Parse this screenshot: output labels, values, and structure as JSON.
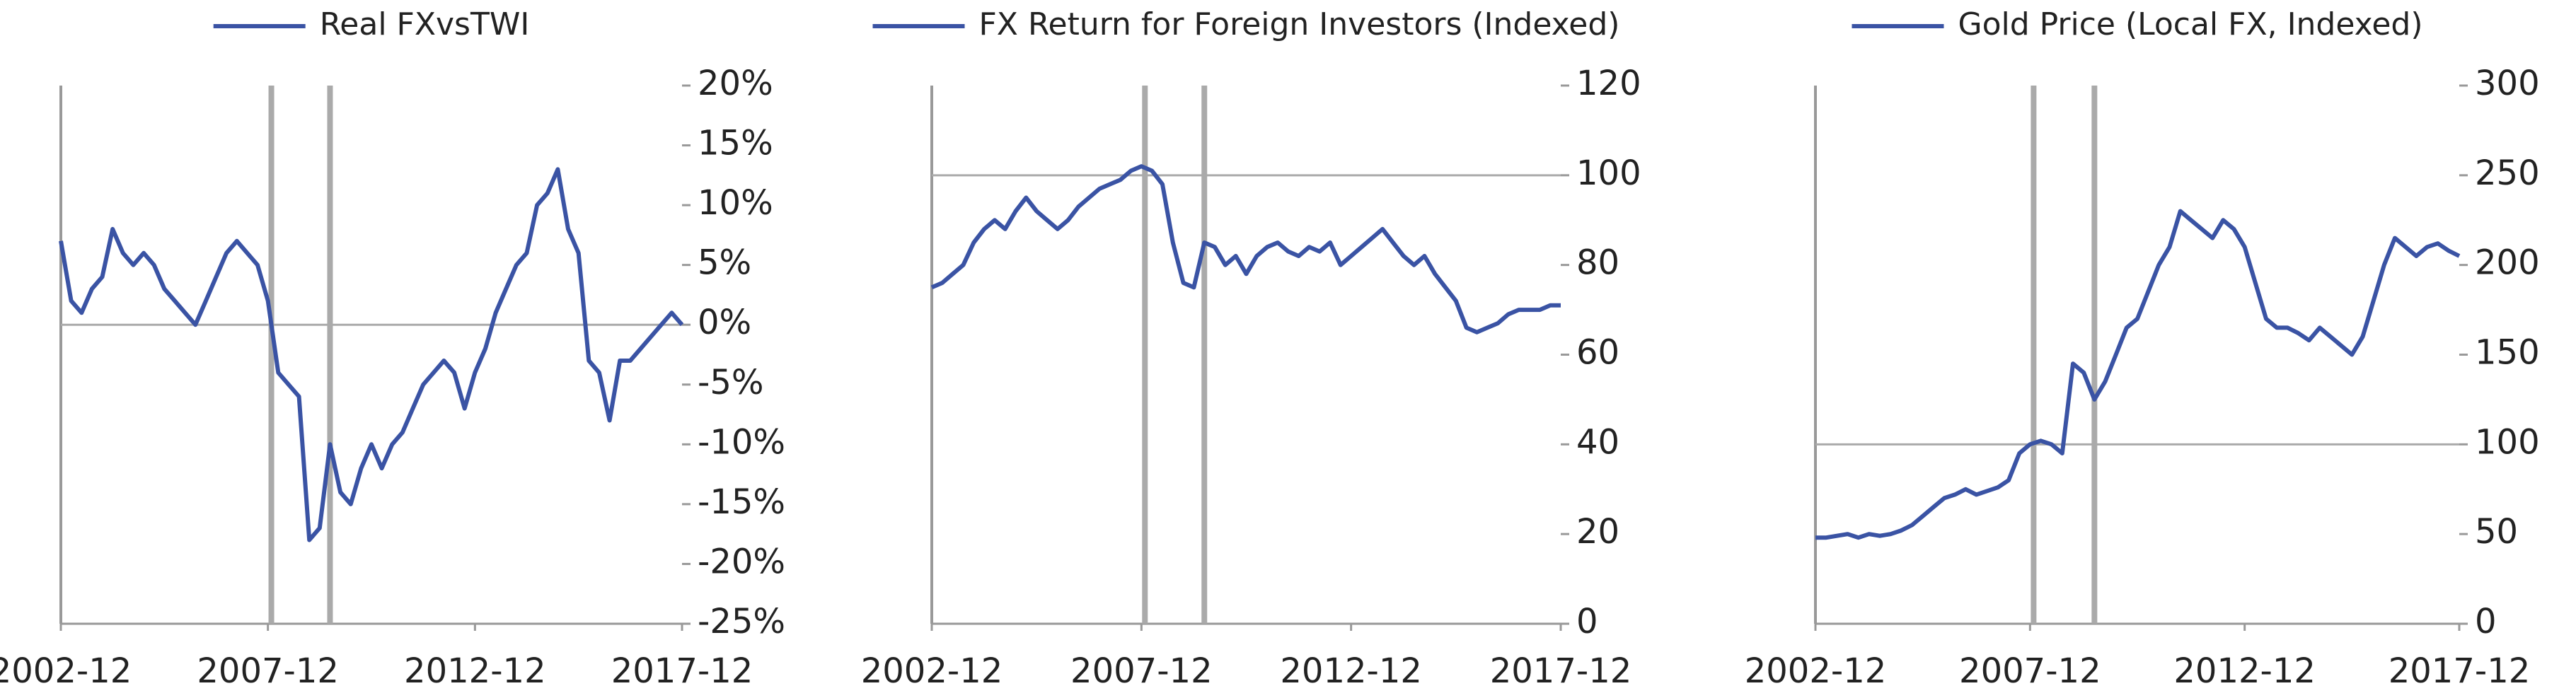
{
  "chart_data": [
    {
      "type": "line",
      "x": [
        "2002-12",
        "2003-03",
        "2003-06",
        "2003-09",
        "2003-12",
        "2004-03",
        "2004-06",
        "2004-09",
        "2004-12",
        "2005-03",
        "2005-06",
        "2005-09",
        "2005-12",
        "2006-03",
        "2006-06",
        "2006-09",
        "2006-12",
        "2007-03",
        "2007-06",
        "2007-09",
        "2007-12",
        "2008-03",
        "2008-06",
        "2008-09",
        "2008-12",
        "2009-03",
        "2009-06",
        "2009-09",
        "2009-12",
        "2010-03",
        "2010-06",
        "2010-09",
        "2010-12",
        "2011-03",
        "2011-06",
        "2011-09",
        "2011-12",
        "2012-03",
        "2012-06",
        "2012-09",
        "2012-12",
        "2013-03",
        "2013-06",
        "2013-09",
        "2013-12",
        "2014-03",
        "2014-06",
        "2014-09",
        "2014-12",
        "2015-03",
        "2015-06",
        "2015-09",
        "2015-12",
        "2016-03",
        "2016-06",
        "2016-09",
        "2016-12",
        "2017-03",
        "2017-06",
        "2017-09",
        "2017-12"
      ],
      "series": [
        {
          "name": "Real FXvsTWI",
          "color": "#3a53a4",
          "values": [
            7,
            2,
            1,
            3,
            4,
            8,
            6,
            5,
            6,
            5,
            3,
            2,
            1,
            0,
            2,
            4,
            6,
            7,
            6,
            5,
            2,
            -4,
            -5,
            -6,
            -18,
            -17,
            -10,
            -14,
            -15,
            -12,
            -10,
            -12,
            -10,
            -9,
            -7,
            -5,
            -4,
            -3,
            -4,
            -7,
            -4,
            -2,
            1,
            3,
            5,
            6,
            10,
            11,
            13,
            8,
            6,
            -3,
            -4,
            -8,
            -3,
            -3,
            -2,
            -1,
            0,
            1,
            0
          ]
        }
      ],
      "ylim": [
        -25,
        20
      ],
      "yticks": [
        {
          "value": -25,
          "label": "-25%"
        },
        {
          "value": -20,
          "label": "-20%"
        },
        {
          "value": -15,
          "label": "-15%"
        },
        {
          "value": -10,
          "label": "-10%"
        },
        {
          "value": -5,
          "label": "-5%"
        },
        {
          "value": 0,
          "label": "0%"
        },
        {
          "value": 5,
          "label": "5%"
        },
        {
          "value": 10,
          "label": "10%"
        },
        {
          "value": 15,
          "label": "15%"
        },
        {
          "value": 20,
          "label": "20%"
        }
      ],
      "xticks": [
        "2002-12",
        "2007-12",
        "2012-12",
        "2017-12"
      ],
      "vlines": [
        "2008-01",
        "2009-06"
      ],
      "hline": 0
    },
    {
      "type": "line",
      "x": [
        "2002-12",
        "2003-03",
        "2003-06",
        "2003-09",
        "2003-12",
        "2004-03",
        "2004-06",
        "2004-09",
        "2004-12",
        "2005-03",
        "2005-06",
        "2005-09",
        "2005-12",
        "2006-03",
        "2006-06",
        "2006-09",
        "2006-12",
        "2007-03",
        "2007-06",
        "2007-09",
        "2007-12",
        "2008-03",
        "2008-06",
        "2008-09",
        "2008-12",
        "2009-03",
        "2009-06",
        "2009-09",
        "2009-12",
        "2010-03",
        "2010-06",
        "2010-09",
        "2010-12",
        "2011-03",
        "2011-06",
        "2011-09",
        "2011-12",
        "2012-03",
        "2012-06",
        "2012-09",
        "2012-12",
        "2013-03",
        "2013-06",
        "2013-09",
        "2013-12",
        "2014-03",
        "2014-06",
        "2014-09",
        "2014-12",
        "2015-03",
        "2015-06",
        "2015-09",
        "2015-12",
        "2016-03",
        "2016-06",
        "2016-09",
        "2016-12",
        "2017-03",
        "2017-06",
        "2017-09",
        "2017-12"
      ],
      "series": [
        {
          "name": "FX Return for Foreign Investors (Indexed)",
          "color": "#3a53a4",
          "values": [
            75,
            76,
            78,
            80,
            85,
            88,
            90,
            88,
            92,
            95,
            92,
            90,
            88,
            90,
            93,
            95,
            97,
            98,
            99,
            101,
            102,
            101,
            98,
            85,
            76,
            75,
            85,
            84,
            80,
            82,
            78,
            82,
            84,
            85,
            83,
            82,
            84,
            83,
            85,
            80,
            82,
            84,
            86,
            88,
            85,
            82,
            80,
            82,
            78,
            75,
            72,
            66,
            65,
            66,
            67,
            69,
            70,
            70,
            70,
            71,
            71
          ]
        }
      ],
      "ylim": [
        0,
        120
      ],
      "yticks": [
        0,
        20,
        40,
        60,
        80,
        100,
        120
      ],
      "xticks": [
        "2002-12",
        "2007-12",
        "2012-12",
        "2017-12"
      ],
      "vlines": [
        "2008-01",
        "2009-06"
      ],
      "hline": 100
    },
    {
      "type": "line",
      "x": [
        "2002-12",
        "2003-03",
        "2003-06",
        "2003-09",
        "2003-12",
        "2004-03",
        "2004-06",
        "2004-09",
        "2004-12",
        "2005-03",
        "2005-06",
        "2005-09",
        "2005-12",
        "2006-03",
        "2006-06",
        "2006-09",
        "2006-12",
        "2007-03",
        "2007-06",
        "2007-09",
        "2007-12",
        "2008-03",
        "2008-06",
        "2008-09",
        "2008-12",
        "2009-03",
        "2009-06",
        "2009-09",
        "2009-12",
        "2010-03",
        "2010-06",
        "2010-09",
        "2010-12",
        "2011-03",
        "2011-06",
        "2011-09",
        "2011-12",
        "2012-03",
        "2012-06",
        "2012-09",
        "2012-12",
        "2013-03",
        "2013-06",
        "2013-09",
        "2013-12",
        "2014-03",
        "2014-06",
        "2014-09",
        "2014-12",
        "2015-03",
        "2015-06",
        "2015-09",
        "2015-12",
        "2016-03",
        "2016-06",
        "2016-09",
        "2016-12",
        "2017-03",
        "2017-06",
        "2017-09",
        "2017-12"
      ],
      "series": [
        {
          "name": "Gold Price (Local FX, Indexed)",
          "color": "#3a53a4",
          "values": [
            48,
            48,
            49,
            50,
            48,
            50,
            49,
            50,
            52,
            55,
            60,
            65,
            70,
            72,
            75,
            72,
            74,
            76,
            80,
            95,
            100,
            102,
            100,
            95,
            145,
            140,
            125,
            135,
            150,
            165,
            170,
            185,
            200,
            210,
            230,
            225,
            220,
            215,
            225,
            220,
            210,
            190,
            170,
            165,
            165,
            162,
            158,
            165,
            160,
            155,
            150,
            160,
            180,
            200,
            215,
            210,
            205,
            210,
            212,
            208,
            205
          ]
        }
      ],
      "ylim": [
        0,
        300
      ],
      "yticks": [
        0,
        50,
        100,
        150,
        200,
        250,
        300
      ],
      "xticks": [
        "2002-12",
        "2007-12",
        "2012-12",
        "2017-12"
      ],
      "vlines": [
        "2008-01",
        "2009-06"
      ],
      "hline": 100
    }
  ]
}
